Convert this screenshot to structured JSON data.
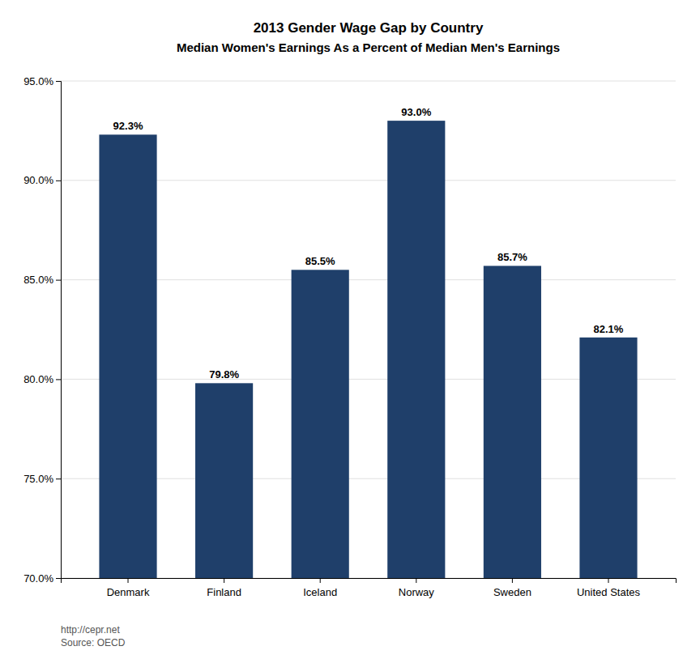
{
  "chart_data": {
    "type": "bar",
    "title": "2013 Gender Wage Gap by Country",
    "subtitle": "Median Women's Earnings As a Percent of Median Men's Earnings",
    "categories": [
      "Denmark",
      "Finland",
      "Iceland",
      "Norway",
      "Sweden",
      "United States"
    ],
    "values": [
      92.3,
      79.8,
      85.5,
      93.0,
      85.7,
      82.1
    ],
    "value_labels": [
      "92.3%",
      "79.8%",
      "85.5%",
      "93.0%",
      "85.7%",
      "82.1%"
    ],
    "data_labels": true,
    "color": "#1F3F6A",
    "ylim": [
      70.0,
      95.0
    ],
    "yticks": [
      {
        "value": 70.0,
        "label": "70.0%"
      },
      {
        "value": 75.0,
        "label": "75.0%"
      },
      {
        "value": 80.0,
        "label": "80.0%"
      },
      {
        "value": 85.0,
        "label": "85.0%"
      },
      {
        "value": 90.0,
        "label": "90.0%"
      },
      {
        "value": 95.0,
        "label": "95.0%"
      }
    ],
    "grid": true,
    "annotations": [
      "http://cepr.net",
      "Source: OECD"
    ]
  }
}
